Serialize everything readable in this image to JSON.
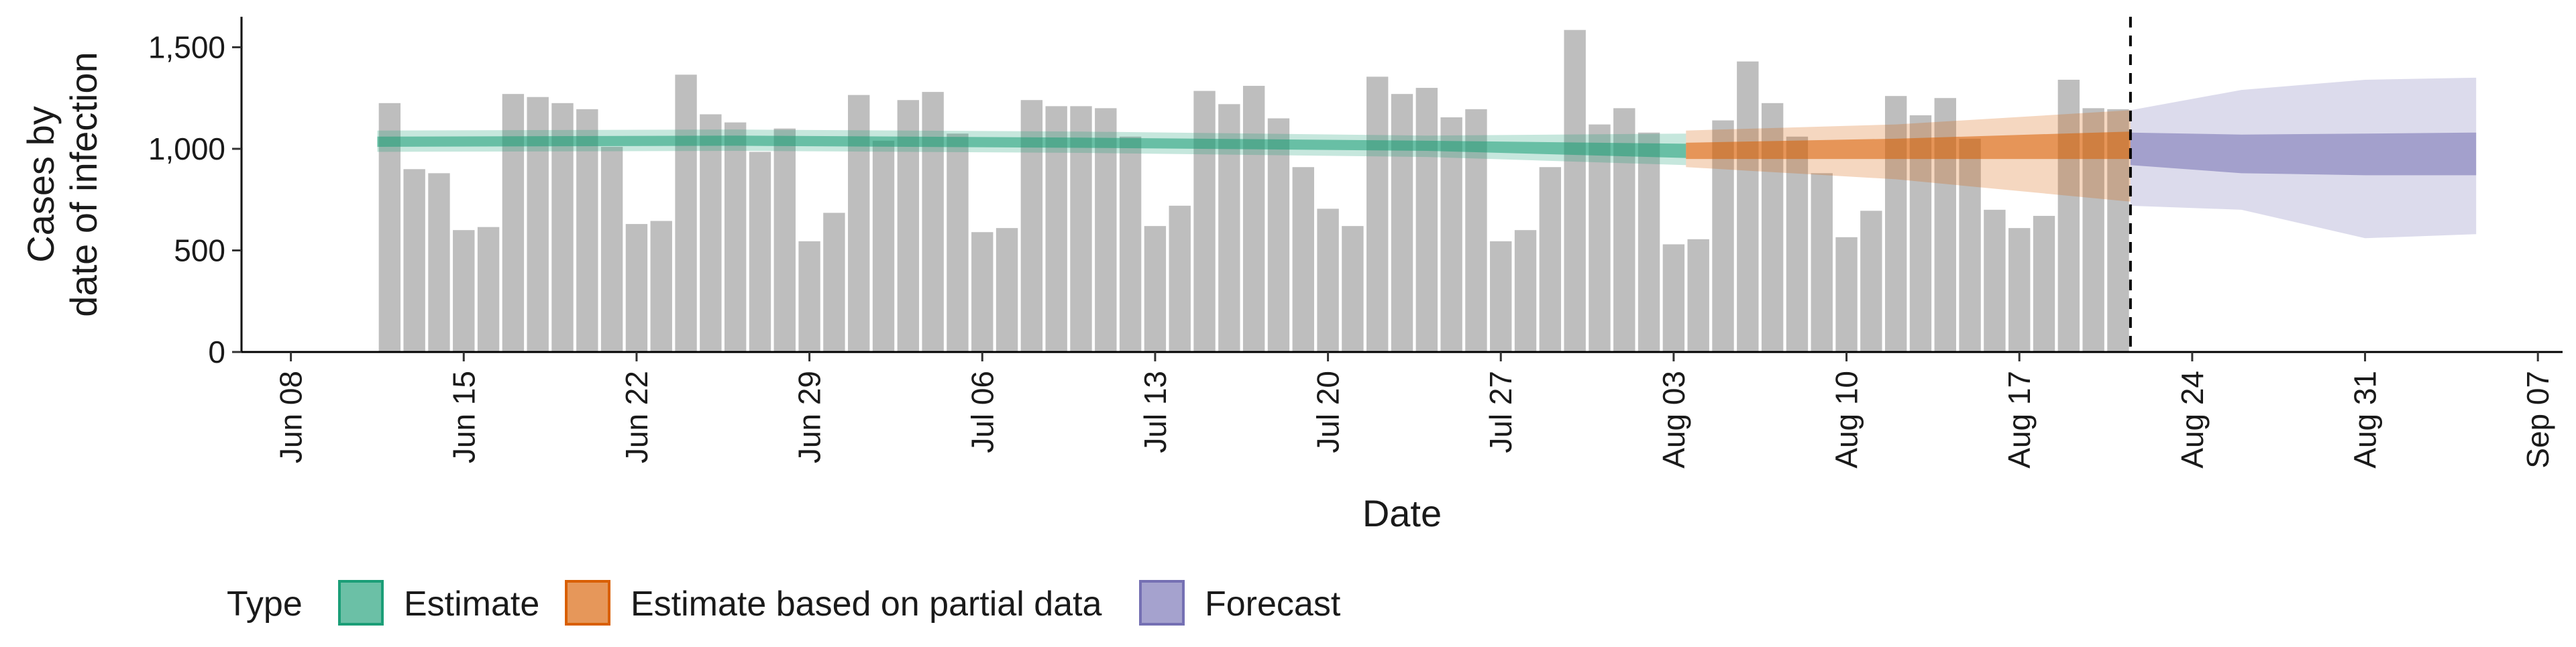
{
  "chart_data": {
    "type": "bar",
    "xlabel": "Date",
    "ylabel": [
      "Cases by",
      "date of infection"
    ],
    "ylim": [
      0,
      1650
    ],
    "yticks": [
      0,
      500,
      1000,
      1500
    ],
    "ytick_labels": [
      "0",
      "500",
      "1,000",
      "1,500"
    ],
    "xlim": [
      "2020-06-06",
      "2020-09-08"
    ],
    "xtick_labels": [
      "Jun 08",
      "Jun 15",
      "Jun 22",
      "Jun 29",
      "Jul 06",
      "Jul 13",
      "Jul 20",
      "Jul 27",
      "Aug 03",
      "Aug 10",
      "Aug 17",
      "Aug 24",
      "Aug 31",
      "Sep 07"
    ],
    "xtick_dates": [
      "2020-06-08",
      "2020-06-15",
      "2020-06-22",
      "2020-06-29",
      "2020-07-06",
      "2020-07-13",
      "2020-07-20",
      "2020-07-27",
      "2020-08-03",
      "2020-08-10",
      "2020-08-17",
      "2020-08-24",
      "2020-08-31",
      "2020-09-07"
    ],
    "bar_dates": [
      "2020-06-12",
      "2020-06-13",
      "2020-06-14",
      "2020-06-15",
      "2020-06-16",
      "2020-06-17",
      "2020-06-18",
      "2020-06-19",
      "2020-06-20",
      "2020-06-21",
      "2020-06-22",
      "2020-06-23",
      "2020-06-24",
      "2020-06-25",
      "2020-06-26",
      "2020-06-27",
      "2020-06-28",
      "2020-06-29",
      "2020-06-30",
      "2020-07-01",
      "2020-07-02",
      "2020-07-03",
      "2020-07-04",
      "2020-07-05",
      "2020-07-06",
      "2020-07-07",
      "2020-07-08",
      "2020-07-09",
      "2020-07-10",
      "2020-07-11",
      "2020-07-12",
      "2020-07-13",
      "2020-07-14",
      "2020-07-15",
      "2020-07-16",
      "2020-07-17",
      "2020-07-18",
      "2020-07-19",
      "2020-07-20",
      "2020-07-21",
      "2020-07-22",
      "2020-07-23",
      "2020-07-24",
      "2020-07-25",
      "2020-07-26",
      "2020-07-27",
      "2020-07-28",
      "2020-07-29",
      "2020-07-30",
      "2020-07-31",
      "2020-08-01",
      "2020-08-02",
      "2020-08-03",
      "2020-08-04",
      "2020-08-05",
      "2020-08-06",
      "2020-08-07",
      "2020-08-08",
      "2020-08-09",
      "2020-08-10",
      "2020-08-11",
      "2020-08-12",
      "2020-08-13",
      "2020-08-14",
      "2020-08-15",
      "2020-08-16",
      "2020-08-17",
      "2020-08-18",
      "2020-08-19",
      "2020-08-20",
      "2020-08-21"
    ],
    "bar_values": [
      1225,
      900,
      880,
      600,
      615,
      1270,
      1255,
      1225,
      1195,
      1010,
      630,
      645,
      1365,
      1170,
      1130,
      985,
      1100,
      545,
      685,
      1265,
      1040,
      1240,
      1280,
      1075,
      590,
      610,
      1240,
      1210,
      1210,
      1200,
      1060,
      620,
      720,
      1285,
      1220,
      1310,
      1150,
      910,
      705,
      620,
      1355,
      1270,
      1300,
      1155,
      1195,
      545,
      600,
      910,
      1585,
      1120,
      1200,
      1080,
      530,
      555,
      1140,
      1430,
      1225,
      1060,
      880,
      565,
      695,
      1260,
      1165,
      1250,
      1050,
      700,
      610,
      670,
      1340,
      1200,
      1195
    ],
    "series": [
      {
        "name": "Estimate",
        "color": "#1B9E77",
        "dates": [
          "2020-06-12",
          "2020-06-26",
          "2020-07-10",
          "2020-07-24",
          "2020-08-03"
        ],
        "median": [
          1035,
          1040,
          1030,
          1015,
          990
        ],
        "inner": [
          [
            1010,
            1060
          ],
          [
            1015,
            1065
          ],
          [
            1005,
            1055
          ],
          [
            990,
            1040
          ],
          [
            955,
            1025
          ]
        ],
        "outer": [
          [
            985,
            1090
          ],
          [
            990,
            1095
          ],
          [
            980,
            1085
          ],
          [
            960,
            1065
          ],
          [
            920,
            1075
          ]
        ]
      },
      {
        "name": "Estimate based on partial data",
        "color": "#D95F02",
        "dates": [
          "2020-08-04",
          "2020-08-12",
          "2020-08-21"
        ],
        "median": [
          990,
          1000,
          1020
        ],
        "inner": [
          [
            950,
            1030
          ],
          [
            950,
            1050
          ],
          [
            950,
            1085
          ]
        ],
        "outer": [
          [
            910,
            1090
          ],
          [
            850,
            1120
          ],
          [
            740,
            1190
          ]
        ]
      },
      {
        "name": "Forecast",
        "color": "#7570B3",
        "dates": [
          "2020-08-22",
          "2020-08-26",
          "2020-08-31",
          "2020-09-04"
        ],
        "median": [
          1000,
          975,
          960,
          980
        ],
        "inner": [
          [
            920,
            1080
          ],
          [
            880,
            1070
          ],
          [
            870,
            1075
          ],
          [
            870,
            1080
          ]
        ],
        "outer": [
          [
            720,
            1190
          ],
          [
            700,
            1290
          ],
          [
            560,
            1340
          ],
          [
            580,
            1350
          ]
        ]
      }
    ],
    "vline_date": "2020-08-21",
    "legend": {
      "title": "Type",
      "position": "bottom",
      "items": [
        "Estimate",
        "Estimate based on partial data",
        "Forecast"
      ]
    },
    "colors": {
      "bars": "#BEBEBE"
    }
  }
}
